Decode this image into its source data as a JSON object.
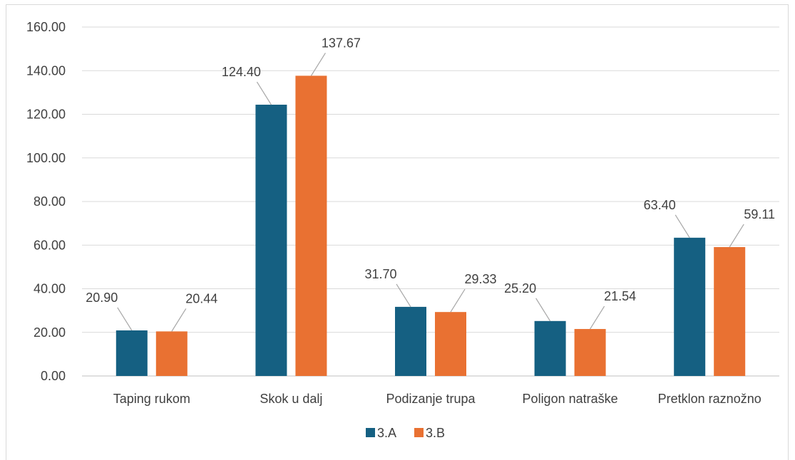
{
  "chart_data": {
    "type": "bar",
    "categories": [
      "Taping rukom",
      "Skok u dalj",
      "Podizanje trupa",
      "Poligon natraške",
      "Pretklon raznožno"
    ],
    "series": [
      {
        "name": "3.A",
        "color": "#156082",
        "values": [
          20.9,
          124.4,
          31.7,
          25.2,
          63.4
        ],
        "labels": [
          "20.90",
          "124.40",
          "31.70",
          "25.20",
          "63.40"
        ]
      },
      {
        "name": "3.B",
        "color": "#E97132",
        "values": [
          20.44,
          137.67,
          29.33,
          21.54,
          59.11
        ],
        "labels": [
          "20.44",
          "137.67",
          "29.33",
          "21.54",
          "59.11"
        ]
      }
    ],
    "yticks": [
      "0.00",
      "20.00",
      "40.00",
      "60.00",
      "80.00",
      "100.00",
      "120.00",
      "140.00",
      "160.00"
    ],
    "ylim": [
      0,
      160
    ],
    "grid": true,
    "legend": "bottom-center",
    "title": "",
    "xlabel": "",
    "ylabel": ""
  }
}
